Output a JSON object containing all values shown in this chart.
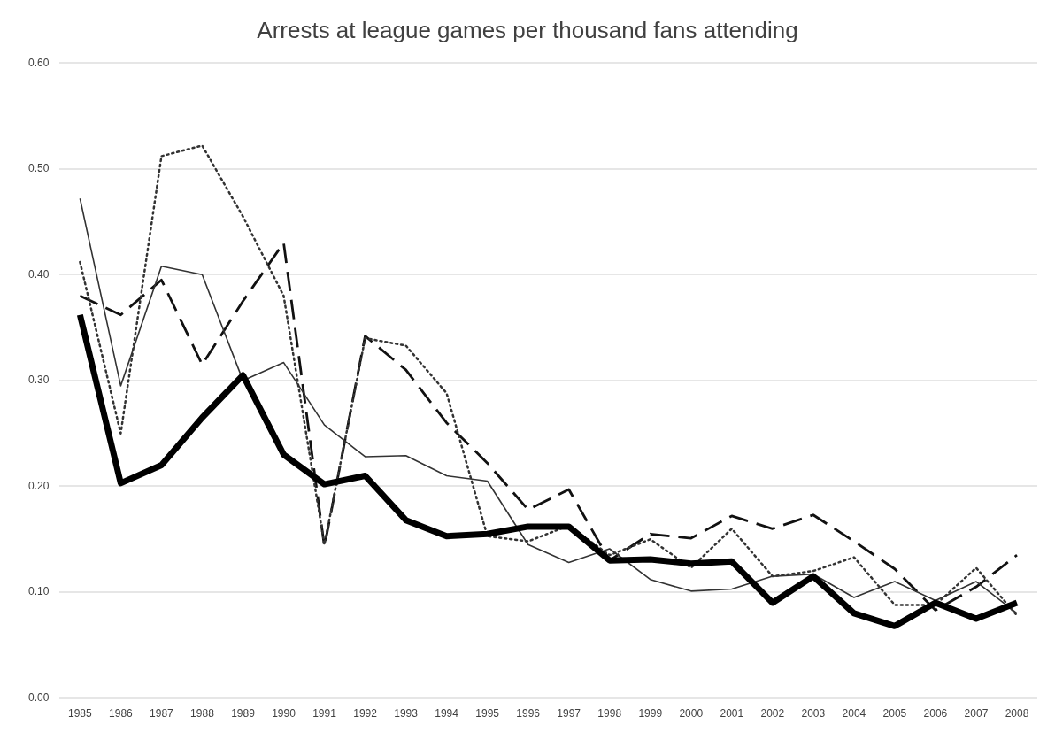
{
  "chart_data": {
    "type": "line",
    "title": "Arrests at league games per thousand fans attending",
    "categories": [
      "1985",
      "1986",
      "1987",
      "1988",
      "1989",
      "1990",
      "1991",
      "1992",
      "1993",
      "1994",
      "1995",
      "1996",
      "1997",
      "1998",
      "1999",
      "2000",
      "2001",
      "2002",
      "2003",
      "2004",
      "2005",
      "2006",
      "2007",
      "2008"
    ],
    "series": [
      {
        "color": "#000000",
        "line_style": "solid",
        "values": [
          0.362,
          0.203,
          0.22,
          0.265,
          0.305,
          0.23,
          0.202,
          0.21,
          0.168,
          0.153,
          0.155,
          0.162,
          0.162,
          0.13,
          0.131,
          0.127,
          0.129,
          0.09,
          0.115,
          0.08,
          0.068,
          0.09,
          0.075,
          0.09
        ]
      },
      {
        "color": "#333333",
        "line_style": "solid",
        "values": [
          0.472,
          0.295,
          0.408,
          0.4,
          0.3,
          0.317,
          0.258,
          0.228,
          0.229,
          0.21,
          0.205,
          0.145,
          0.128,
          0.141,
          0.112,
          0.101,
          0.103,
          0.115,
          0.117,
          0.095,
          0.11,
          0.092,
          0.11,
          0.08
        ]
      },
      {
        "color": "#333333",
        "line_style": "dotted",
        "values": [
          0.412,
          0.25,
          0.512,
          0.522,
          0.455,
          0.38,
          0.145,
          0.34,
          0.333,
          0.288,
          0.153,
          0.148,
          0.163,
          0.135,
          0.15,
          0.123,
          0.16,
          0.115,
          0.12,
          0.133,
          0.088,
          0.088,
          0.123,
          0.078
        ]
      },
      {
        "color": "#111111",
        "line_style": "dashed",
        "values": [
          0.38,
          0.362,
          0.395,
          0.315,
          0.375,
          0.43,
          0.143,
          0.342,
          0.31,
          0.26,
          0.222,
          0.178,
          0.197,
          0.13,
          0.155,
          0.151,
          0.172,
          0.16,
          0.173,
          0.148,
          0.122,
          0.083,
          0.105,
          0.135
        ]
      }
    ],
    "ylim": [
      0,
      0.6
    ],
    "yticks": [
      {
        "value": 0,
        "label": "0.00"
      },
      {
        "value": 0.1,
        "label": "0.10"
      },
      {
        "value": 0.2,
        "label": "0.20"
      },
      {
        "value": 0.3,
        "label": "0.30"
      },
      {
        "value": 0.4,
        "label": "0.40"
      },
      {
        "value": 0.5,
        "label": "0.50"
      },
      {
        "value": 0.6,
        "label": "0.60"
      }
    ],
    "grid": "y",
    "legend": false,
    "marker": "none"
  }
}
